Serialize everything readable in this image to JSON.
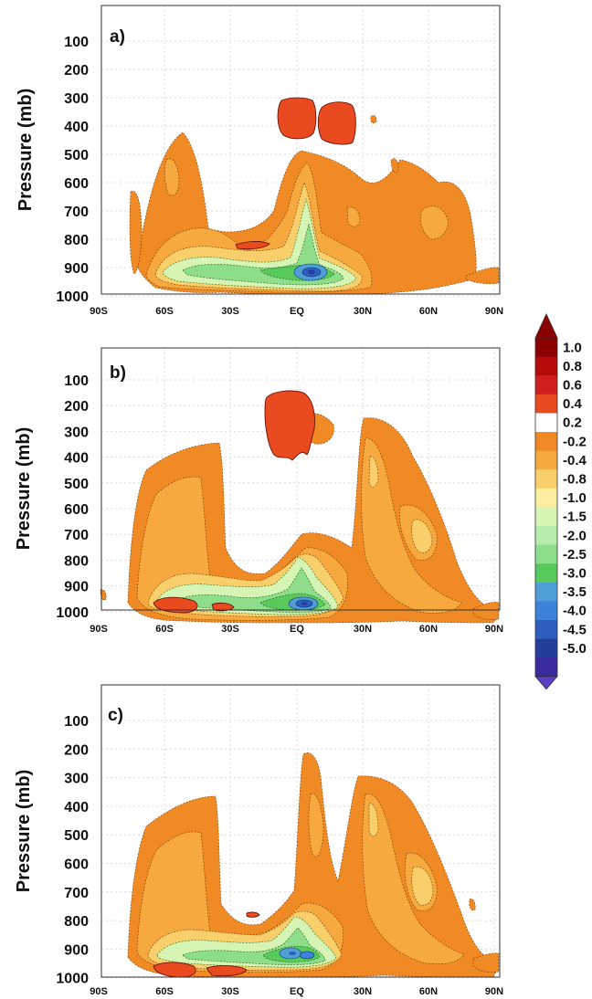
{
  "chart_data": [
    {
      "type": "heatmap",
      "panel_label": "a)",
      "ylabel": "Pressure (mb)",
      "xticks": [
        "90S",
        "60S",
        "30S",
        "EQ",
        "30N",
        "60N",
        "90N"
      ],
      "yticks": [
        "100",
        "200",
        "300",
        "400",
        "500",
        "600",
        "700",
        "800",
        "900",
        "1000"
      ],
      "ylim": [
        1000,
        0
      ],
      "xlim": [
        "90S",
        "90N"
      ],
      "grid": true,
      "features": [
        {
          "kind": "cell",
          "lat": [
            -50,
            -5
          ],
          "p": [
            420,
            950
          ],
          "value": -0.2
        },
        {
          "kind": "cell",
          "lat": [
            -75,
            -60
          ],
          "p": [
            620,
            930
          ],
          "value": -0.2
        },
        {
          "kind": "cell",
          "lat": [
            -5,
            80
          ],
          "p": [
            450,
            980
          ],
          "value": -0.2
        },
        {
          "kind": "cell",
          "lat": [
            -20,
            40
          ],
          "p": [
            750,
            1000
          ],
          "value": -0.3
        },
        {
          "kind": "core",
          "lat": [
            8,
            8
          ],
          "p": [
            935,
            935
          ],
          "value": -3.5
        },
        {
          "kind": "cell",
          "lat": [
            -1,
            15
          ],
          "p": [
            290,
            370
          ],
          "value": 0.4
        },
        {
          "kind": "cell",
          "lat": [
            20,
            38
          ],
          "p": [
            330,
            430
          ],
          "value": 0.4
        }
      ]
    },
    {
      "type": "heatmap",
      "panel_label": "b)",
      "ylabel": "Pressure (mb)",
      "xticks": [
        "90S",
        "60S",
        "30S",
        "EQ",
        "30N",
        "60N",
        "90N"
      ],
      "yticks": [
        "100",
        "200",
        "300",
        "400",
        "500",
        "600",
        "700",
        "800",
        "900",
        "1000"
      ],
      "ylim": [
        1000,
        0
      ],
      "xlim": [
        "90S",
        "90N"
      ],
      "grid": true,
      "features": [
        {
          "kind": "cell",
          "lat": [
            -70,
            -30
          ],
          "p": [
            330,
            960
          ],
          "value": -0.3
        },
        {
          "kind": "cell",
          "lat": [
            25,
            80
          ],
          "p": [
            250,
            990
          ],
          "value": -0.4
        },
        {
          "kind": "cell",
          "lat": [
            -5,
            25
          ],
          "p": [
            220,
            310
          ],
          "value": -0.2
        },
        {
          "kind": "core",
          "lat": [
            4,
            4
          ],
          "p": [
            925,
            925
          ],
          "value": -4.0
        },
        {
          "kind": "cell",
          "lat": [
            -5,
            22
          ],
          "p": [
            440,
            630
          ],
          "value": 0.4
        },
        {
          "kind": "cell",
          "lat": [
            -62,
            -40
          ],
          "p": [
            975,
            1000
          ],
          "value": 0.4
        }
      ]
    },
    {
      "type": "heatmap",
      "panel_label": "c)",
      "ylabel": "Pressure (mb)",
      "xticks": [
        "90S",
        "60S",
        "30S",
        "EQ",
        "30N",
        "60N",
        "90N"
      ],
      "yticks": [
        "100",
        "200",
        "300",
        "400",
        "500",
        "600",
        "700",
        "800",
        "900",
        "1000"
      ],
      "ylim": [
        1000,
        0
      ],
      "xlim": [
        "90S",
        "90N"
      ],
      "grid": true,
      "features": [
        {
          "kind": "cell",
          "lat": [
            -70,
            -30
          ],
          "p": [
            330,
            960
          ],
          "value": -0.3
        },
        {
          "kind": "cell",
          "lat": [
            28,
            80
          ],
          "p": [
            250,
            990
          ],
          "value": -0.4
        },
        {
          "kind": "cell",
          "lat": [
            3,
            18
          ],
          "p": [
            230,
            400
          ],
          "value": -0.2
        },
        {
          "kind": "core",
          "lat": [
            4,
            4
          ],
          "p": [
            905,
            905
          ],
          "value": -3.5
        },
        {
          "kind": "cell",
          "lat": [
            -62,
            -35
          ],
          "p": [
            975,
            1000
          ],
          "value": 0.4
        }
      ]
    }
  ],
  "colorbar": {
    "labels": [
      "1.0",
      "0.8",
      "0.6",
      "0.4",
      "0.2",
      "-0.2",
      "-0.4",
      "-0.8",
      "-1.0",
      "-1.5",
      "-2.0",
      "-2.5",
      "-3.0",
      "-3.5",
      "-4.0",
      "-4.5",
      "-5.0"
    ],
    "colors": [
      "#8b0000",
      "#b40b0b",
      "#d21e1e",
      "#ea4a1f",
      "#ffffff",
      "#f08a24",
      "#f6a93e",
      "#f9cf6b",
      "#fbeea0",
      "#d6f5b4",
      "#b6ecac",
      "#8edd8a",
      "#58c95b",
      "#4f9ed6",
      "#3b82d8",
      "#2e5fbf",
      "#243f9a",
      "#3a2aa0"
    ],
    "arrow_top_color": "#8b0000",
    "arrow_bottom_color": "#5a3fc0"
  }
}
